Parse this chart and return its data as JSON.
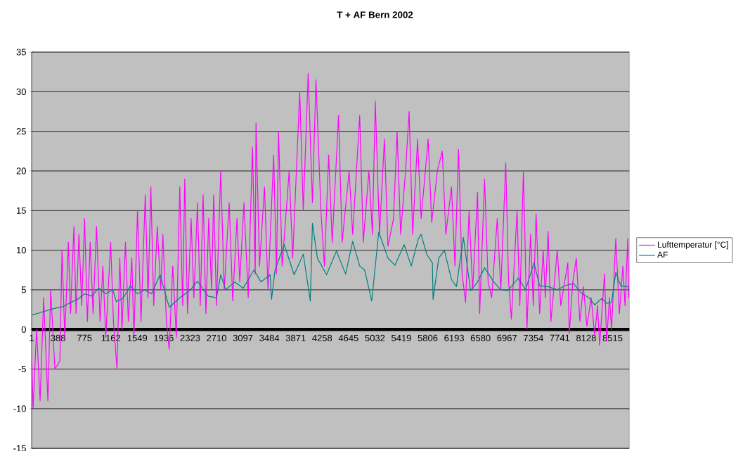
{
  "chart_data": {
    "type": "line",
    "title": "T + AF Bern 2002",
    "xlim": [
      1,
      8760
    ],
    "ylim": [
      -15,
      35
    ],
    "xticks": [
      1,
      388,
      775,
      1162,
      1549,
      1936,
      2323,
      2710,
      3097,
      3484,
      3871,
      4258,
      4645,
      5032,
      5419,
      5806,
      6193,
      6580,
      6967,
      7354,
      7741,
      8128,
      8515
    ],
    "yticks": [
      -15,
      -10,
      -5,
      0,
      5,
      10,
      15,
      20,
      25,
      30,
      35
    ],
    "grid": "y",
    "legend": "right",
    "marker": "none",
    "line_style": "solid",
    "series": [
      {
        "name": "Lufttemperatur [°C]",
        "color": "#ff00ff",
        "x": [
          1,
          22,
          73,
          125,
          177,
          239,
          280,
          342,
          415,
          446,
          487,
          539,
          570,
          621,
          652,
          694,
          735,
          777,
          818,
          859,
          901,
          952,
          1004,
          1045,
          1087,
          1159,
          1200,
          1252,
          1293,
          1325,
          1376,
          1418,
          1469,
          1500,
          1552,
          1604,
          1666,
          1707,
          1748,
          1790,
          1842,
          1893,
          1924,
          1976,
          2017,
          2069,
          2121,
          2172,
          2214,
          2245,
          2286,
          2338,
          2379,
          2431,
          2472,
          2514,
          2555,
          2596,
          2638,
          2669,
          2710,
          2772,
          2824,
          2896,
          2948,
          3010,
          3051,
          3113,
          3175,
          3237,
          3278,
          3289,
          3341,
          3413,
          3465,
          3548,
          3589,
          3620,
          3672,
          3775,
          3827,
          3930,
          3982,
          4054,
          4116,
          4168,
          4240,
          4292,
          4354,
          4406,
          4499,
          4551,
          4654,
          4706,
          4809,
          4861,
          4944,
          4995,
          5037,
          5099,
          5171,
          5223,
          5305,
          5357,
          5409,
          5481,
          5533,
          5585,
          5657,
          5709,
          5812,
          5864,
          5947,
          6019,
          6071,
          6154,
          6205,
          6257,
          6309,
          6361,
          6412,
          6464,
          6536,
          6567,
          6639,
          6691,
          6743,
          6825,
          6877,
          6949,
          6991,
          7032,
          7115,
          7156,
          7208,
          7260,
          7312,
          7353,
          7394,
          7446,
          7498,
          7529,
          7570,
          7611,
          7704,
          7756,
          7859,
          7880,
          7932,
          7983,
          8035,
          8087,
          8139,
          8201,
          8253,
          8294,
          8325,
          8397,
          8428,
          8469,
          8500,
          8562,
          8614,
          8666,
          8697,
          8738,
          8750,
          8760
        ],
        "values": [
          -3,
          -10,
          0,
          -9,
          4,
          -9,
          5,
          -5,
          -4,
          10,
          -1,
          11,
          2,
          13,
          2,
          12,
          3,
          14,
          1,
          11,
          2,
          13,
          1,
          8,
          -1,
          11,
          1,
          -5,
          9,
          0,
          11,
          1,
          9,
          -1,
          15,
          1,
          17,
          4,
          18,
          3,
          13,
          5,
          12,
          1,
          -2.5,
          8,
          -1,
          18,
          3,
          19,
          2,
          14,
          4,
          16,
          3,
          17,
          2,
          14,
          5,
          17,
          3,
          20,
          5,
          16,
          3.6,
          14,
          6,
          16,
          4,
          23,
          7,
          26,
          8,
          18,
          5,
          22,
          7,
          25,
          8,
          20,
          9,
          30,
          15,
          32.3,
          16,
          31.5,
          15,
          8,
          22,
          11,
          27,
          11,
          20,
          12,
          27,
          11,
          20,
          12,
          28.8,
          12,
          24,
          10.5,
          14,
          25,
          12,
          20,
          27.5,
          12,
          24,
          14,
          24,
          13.5,
          20,
          22.5,
          12,
          18,
          8,
          22.7,
          7,
          3.4,
          15,
          5,
          17.3,
          2,
          19,
          6,
          4,
          14,
          5,
          21,
          6,
          1.3,
          15,
          3,
          20,
          0.1,
          12,
          3,
          14.6,
          2,
          10,
          4,
          12.4,
          1,
          10,
          3,
          8.4,
          -0.5,
          6,
          9,
          1,
          5.4,
          0.4,
          4,
          -0.8,
          3,
          -2,
          7,
          -1.5,
          4,
          0,
          11.5,
          2,
          8,
          3,
          11.5,
          4,
          5
        ]
      },
      {
        "name": "AF",
        "color": "#008080",
        "x": [
          1,
          156,
          311,
          466,
          570,
          673,
          777,
          880,
          983,
          1087,
          1190,
          1242,
          1345,
          1449,
          1552,
          1655,
          1759,
          1883,
          2017,
          2172,
          2327,
          2431,
          2586,
          2710,
          2772,
          2845,
          2979,
          3103,
          3258,
          3362,
          3496,
          3517,
          3568,
          3703,
          3848,
          3982,
          4085,
          4116,
          4189,
          4323,
          4468,
          4602,
          4706,
          4809,
          4881,
          4985,
          5088,
          5223,
          5326,
          5460,
          5564,
          5667,
          5709,
          5791,
          5874,
          5884,
          5967,
          6050,
          6154,
          6226,
          6329,
          6433,
          6536,
          6639,
          6773,
          6877,
          6980,
          7135,
          7239,
          7363,
          7446,
          7570,
          7704,
          7808,
          7942,
          8066,
          8170,
          8253,
          8356,
          8428,
          8500,
          8562,
          8635,
          8738,
          8760
        ],
        "values": [
          1.8,
          2.2,
          2.6,
          2.9,
          3.4,
          3.8,
          4.5,
          4.2,
          5.2,
          4.5,
          5.0,
          3.5,
          4.0,
          5.5,
          4.5,
          5.0,
          4.5,
          6.9,
          2.8,
          4.0,
          5.0,
          6.1,
          4.2,
          4.0,
          6.9,
          5.0,
          6.0,
          5.2,
          7.5,
          6.0,
          6.9,
          3.8,
          7.5,
          10.7,
          6.9,
          9.5,
          3.6,
          13.4,
          9.0,
          6.9,
          9.9,
          7.0,
          11.1,
          8.0,
          7.5,
          3.6,
          12.3,
          9.0,
          8.1,
          10.7,
          8.0,
          11.4,
          12.0,
          9.5,
          8.4,
          3.8,
          9.0,
          10.0,
          6.3,
          5.4,
          11.6,
          4.9,
          6.0,
          7.8,
          6.0,
          5.0,
          4.9,
          6.5,
          5.0,
          8.4,
          5.5,
          5.4,
          5.0,
          5.5,
          5.8,
          4.5,
          4.0,
          3.1,
          3.9,
          3.3,
          3.4,
          7.2,
          5.5,
          5.4,
          5.0
        ]
      }
    ]
  }
}
